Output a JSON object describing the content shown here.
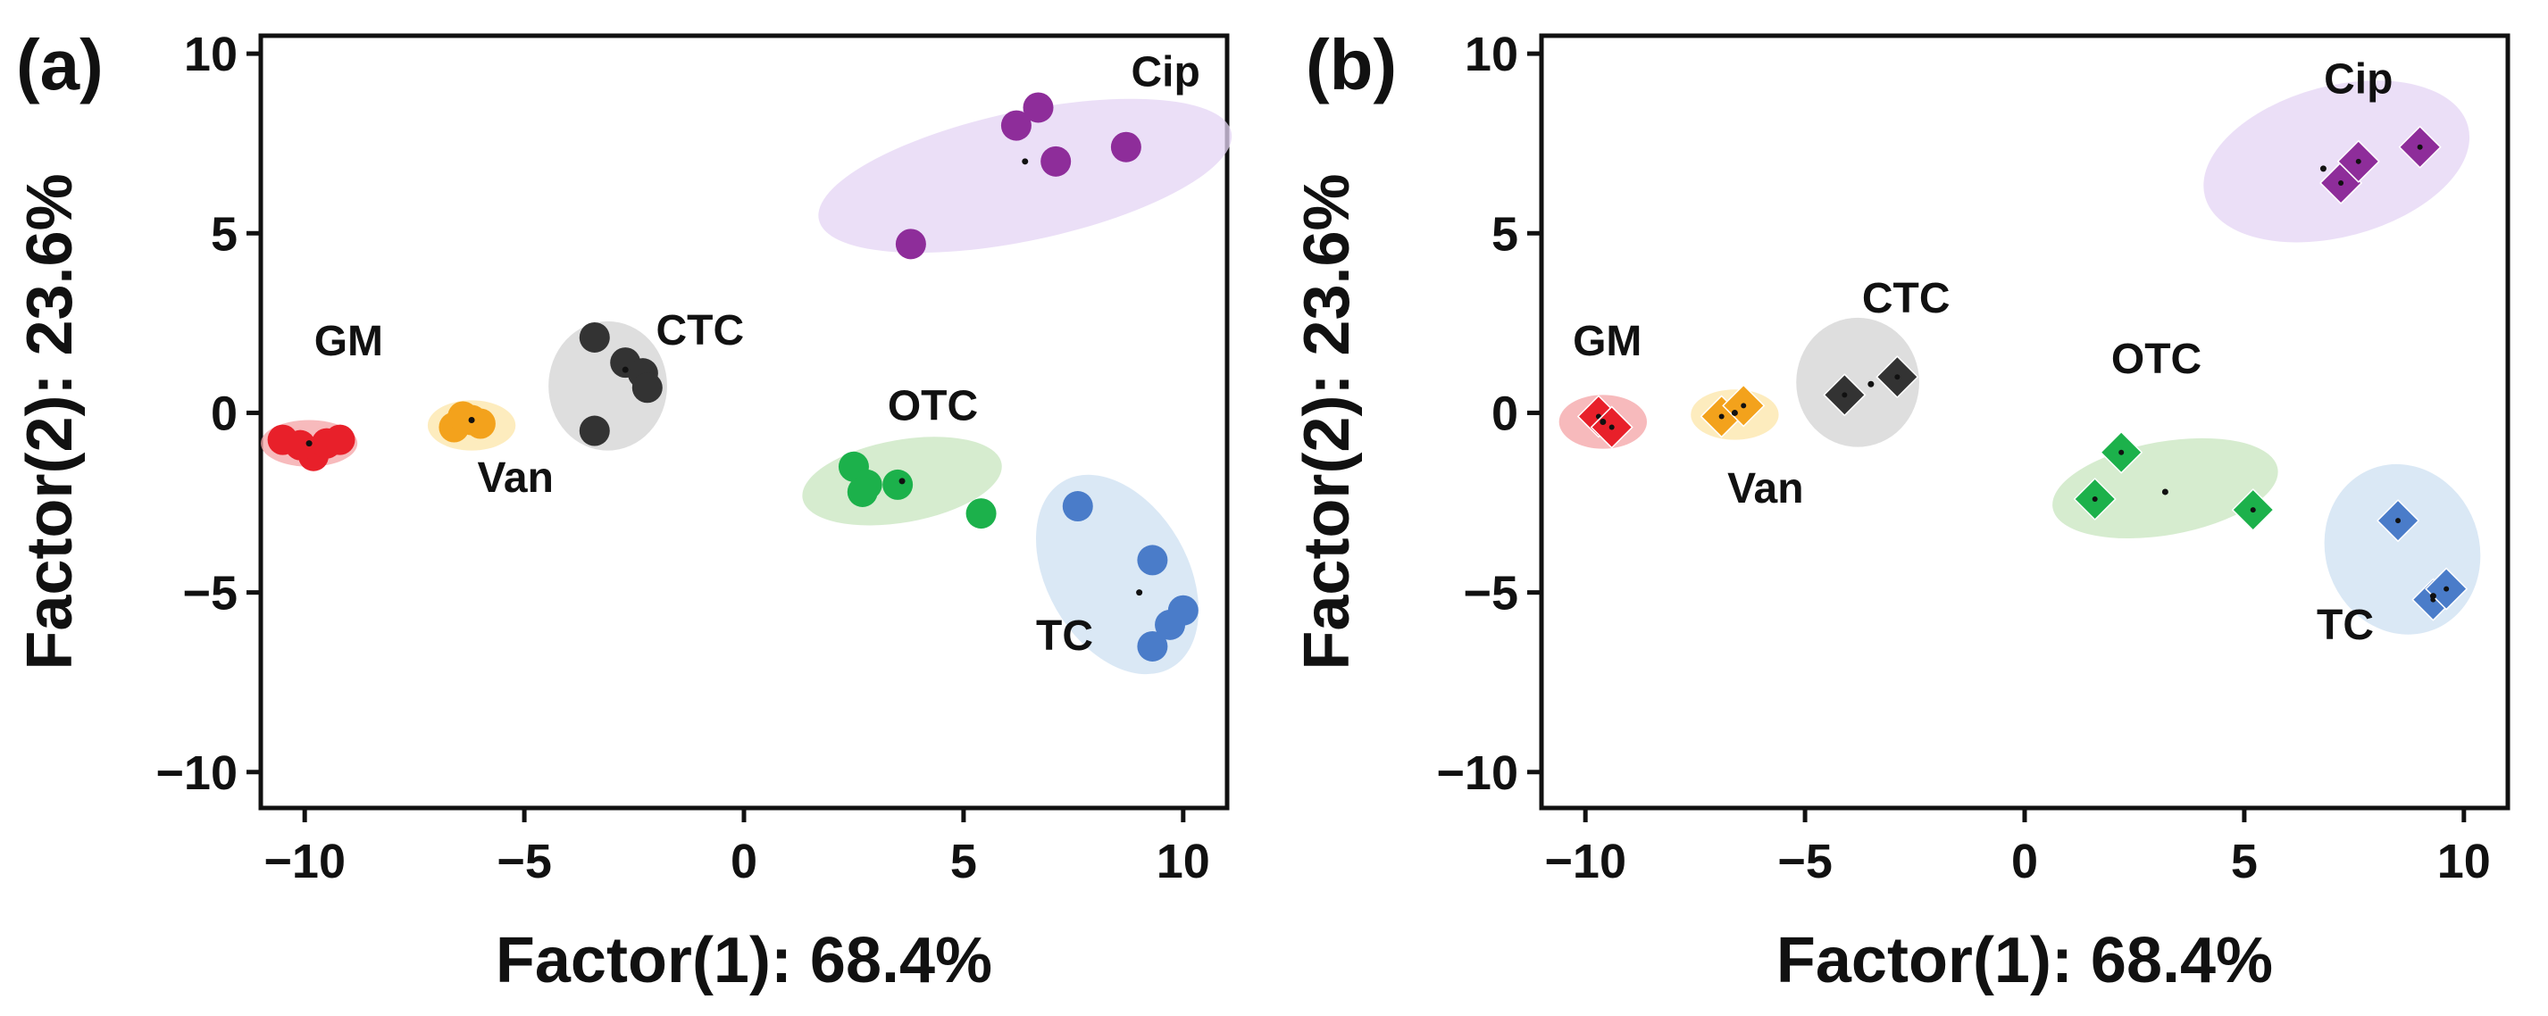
{
  "chart_data": [
    {
      "type": "scatter",
      "panel_label": "(a)",
      "marker": "circle",
      "xlabel": "Factor(1): 68.4%",
      "ylabel": "Factor(2): 23.6%",
      "xlim": [
        -11,
        11
      ],
      "ylim": [
        -11,
        10.5
      ],
      "xticks": [
        -10,
        -5,
        0,
        5,
        10
      ],
      "xtick_labels": [
        "−10",
        "−5",
        "0",
        "5",
        "10"
      ],
      "yticks": [
        -10,
        -5,
        0,
        5,
        10
      ],
      "ytick_labels": [
        "−10",
        "−5",
        "0",
        "5",
        "10"
      ],
      "grid": false,
      "series": [
        {
          "name": "GM",
          "color": "#e8202a",
          "ellipse_color": "#f4a3a6",
          "label_anchor": [
            -9.0,
            1.6
          ],
          "ellipse": {
            "cx": -9.9,
            "cy": -0.85,
            "rx": 1.1,
            "ry": 0.65,
            "angle": 0
          },
          "centroid": [
            -9.9,
            -0.85
          ],
          "points": [
            [
              -10.5,
              -0.75
            ],
            [
              -9.8,
              -1.2
            ],
            [
              -9.5,
              -0.85
            ],
            [
              -9.2,
              -0.75
            ],
            [
              -10.1,
              -0.9
            ]
          ]
        },
        {
          "name": "Van",
          "color": "#f3a21c",
          "ellipse_color": "#fce5a8",
          "label_anchor": [
            -5.2,
            -2.2
          ],
          "ellipse": {
            "cx": -6.2,
            "cy": -0.35,
            "rx": 1.0,
            "ry": 0.7,
            "angle": 0
          },
          "centroid": [
            -6.2,
            -0.2
          ],
          "points": [
            [
              -6.6,
              -0.4
            ],
            [
              -6.2,
              -0.2
            ],
            [
              -6.0,
              -0.3
            ],
            [
              -6.4,
              -0.1
            ]
          ]
        },
        {
          "name": "CTC",
          "color": "#333333",
          "ellipse_color": "#d3d3d3",
          "label_anchor": [
            -1.0,
            1.9
          ],
          "ellipse": {
            "cx": -3.1,
            "cy": 0.75,
            "rx": 1.35,
            "ry": 1.8,
            "angle": 0
          },
          "centroid": [
            -2.7,
            1.2
          ],
          "points": [
            [
              -3.4,
              2.1
            ],
            [
              -2.7,
              1.4
            ],
            [
              -2.3,
              1.1
            ],
            [
              -2.2,
              0.7
            ],
            [
              -3.4,
              -0.5
            ]
          ]
        },
        {
          "name": "OTC",
          "color": "#1cb14b",
          "ellipse_color": "#c8e6bf",
          "label_anchor": [
            4.3,
            -0.2
          ],
          "ellipse": {
            "cx": 3.6,
            "cy": -1.9,
            "rx": 2.3,
            "ry": 1.15,
            "angle": -10
          },
          "centroid": [
            3.6,
            -1.9
          ],
          "points": [
            [
              2.5,
              -1.5
            ],
            [
              2.8,
              -2.0
            ],
            [
              3.5,
              -2.0
            ],
            [
              5.4,
              -2.8
            ],
            [
              2.7,
              -2.2
            ]
          ]
        },
        {
          "name": "TC",
          "color": "#4a7cc9",
          "ellipse_color": "#cde0f2",
          "label_anchor": [
            7.3,
            -6.6
          ],
          "ellipse": {
            "cx": 8.5,
            "cy": -4.5,
            "rx": 1.6,
            "ry": 3.0,
            "angle": -30
          },
          "centroid": [
            9.0,
            -5.0
          ],
          "points": [
            [
              7.6,
              -2.6
            ],
            [
              9.3,
              -4.1
            ],
            [
              9.7,
              -5.9
            ],
            [
              10.0,
              -5.5
            ],
            [
              9.3,
              -6.5
            ]
          ]
        },
        {
          "name": "Cip",
          "color": "#8e2d9a",
          "ellipse_color": "#e4d4f4",
          "label_anchor": [
            9.6,
            9.1
          ],
          "ellipse": {
            "cx": 6.4,
            "cy": 6.6,
            "rx": 4.8,
            "ry": 1.8,
            "angle": -12
          },
          "centroid": [
            6.4,
            7.0
          ],
          "points": [
            [
              6.2,
              8.0
            ],
            [
              6.7,
              8.5
            ],
            [
              7.1,
              7.0
            ],
            [
              8.7,
              7.4
            ],
            [
              3.8,
              4.7
            ]
          ]
        }
      ]
    },
    {
      "type": "scatter",
      "panel_label": "(b)",
      "marker": "diamond",
      "xlabel": "Factor(1): 68.4%",
      "ylabel": "Factor(2): 23.6%",
      "xlim": [
        -11,
        11
      ],
      "ylim": [
        -11,
        10.5
      ],
      "xticks": [
        -10,
        -5,
        0,
        5,
        10
      ],
      "xtick_labels": [
        "−10",
        "−5",
        "0",
        "5",
        "10"
      ],
      "yticks": [
        -10,
        -5,
        0,
        5,
        10
      ],
      "ytick_labels": [
        "−10",
        "−5",
        "0",
        "5",
        "10"
      ],
      "grid": false,
      "series": [
        {
          "name": "GM",
          "color": "#e8202a",
          "ellipse_color": "#f4a3a6",
          "label_anchor": [
            -9.5,
            1.6
          ],
          "ellipse": {
            "cx": -9.6,
            "cy": -0.25,
            "rx": 1.0,
            "ry": 0.75,
            "angle": 0
          },
          "centroid": [
            -9.6,
            -0.25
          ],
          "points": [
            [
              -9.7,
              -0.1
            ],
            [
              -9.4,
              -0.4
            ]
          ]
        },
        {
          "name": "Van",
          "color": "#f3a21c",
          "ellipse_color": "#fce5a8",
          "label_anchor": [
            -5.9,
            -2.5
          ],
          "ellipse": {
            "cx": -6.6,
            "cy": -0.05,
            "rx": 1.0,
            "ry": 0.7,
            "angle": 0
          },
          "centroid": [
            -6.6,
            0.0
          ],
          "points": [
            [
              -6.9,
              -0.1
            ],
            [
              -6.4,
              0.2
            ]
          ]
        },
        {
          "name": "CTC",
          "color": "#333333",
          "ellipse_color": "#d3d3d3",
          "label_anchor": [
            -2.7,
            2.8
          ],
          "ellipse": {
            "cx": -3.8,
            "cy": 0.85,
            "rx": 1.4,
            "ry": 1.8,
            "angle": 0
          },
          "centroid": [
            -3.5,
            0.8
          ],
          "points": [
            [
              -4.1,
              0.5
            ],
            [
              -2.9,
              1.0
            ]
          ]
        },
        {
          "name": "OTC",
          "color": "#1cb14b",
          "ellipse_color": "#c8e6bf",
          "label_anchor": [
            3.0,
            1.1
          ],
          "ellipse": {
            "cx": 3.2,
            "cy": -2.1,
            "rx": 2.6,
            "ry": 1.3,
            "angle": -10
          },
          "centroid": [
            3.2,
            -2.2
          ],
          "points": [
            [
              2.2,
              -1.1
            ],
            [
              1.6,
              -2.4
            ],
            [
              5.2,
              -2.7
            ]
          ]
        },
        {
          "name": "TC",
          "color": "#4a7cc9",
          "ellipse_color": "#cde0f2",
          "label_anchor": [
            7.3,
            -6.3
          ],
          "ellipse": {
            "cx": 8.6,
            "cy": -3.8,
            "rx": 1.75,
            "ry": 2.4,
            "angle": -20
          },
          "centroid": [
            9.3,
            -5.1
          ],
          "points": [
            [
              8.5,
              -3.0
            ],
            [
              9.3,
              -5.2
            ],
            [
              9.6,
              -4.9
            ]
          ]
        },
        {
          "name": "Cip",
          "color": "#8e2d9a",
          "ellipse_color": "#e4d4f4",
          "label_anchor": [
            7.6,
            8.9
          ],
          "ellipse": {
            "cx": 7.1,
            "cy": 7.0,
            "rx": 3.1,
            "ry": 2.1,
            "angle": -15
          },
          "centroid": [
            6.8,
            6.8
          ],
          "points": [
            [
              7.2,
              6.4
            ],
            [
              7.6,
              7.0
            ],
            [
              9.0,
              7.4
            ]
          ]
        }
      ]
    }
  ]
}
